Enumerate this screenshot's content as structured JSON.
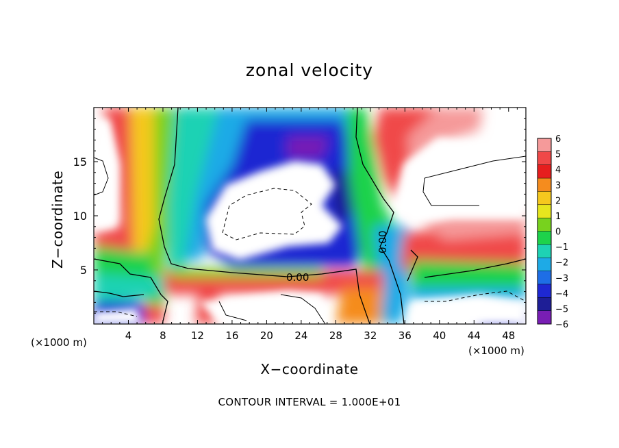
{
  "chart_data": {
    "type": "heatmap",
    "title": "zonal velocity",
    "xlabel": "X−coordinate",
    "ylabel": "Z−coordinate",
    "x_unit_left": "(×1000 m)",
    "x_unit_right": "(×1000 m)",
    "xlim": [
      0,
      50
    ],
    "ylim": [
      0,
      20
    ],
    "x_ticks": [
      4,
      8,
      12,
      16,
      20,
      24,
      28,
      32,
      36,
      40,
      44,
      48
    ],
    "y_ticks": [
      5,
      10,
      15
    ],
    "colorbar": {
      "levels": [
        6,
        5,
        4,
        3,
        2,
        1,
        0,
        -1,
        -2,
        -3,
        -4,
        -5,
        -6
      ],
      "colors": [
        "#f59a9a",
        "#f04848",
        "#e61e1e",
        "#f58c1e",
        "#f5c81e",
        "#e6e61e",
        "#78d21e",
        "#1ed24b",
        "#1ed2b4",
        "#1eaae6",
        "#1e6ee6",
        "#1e28d2",
        "#1e1e96",
        "#781eb4"
      ]
    },
    "contour_label_1": "0.00",
    "contour_label_2": "0.00",
    "contour_interval_text": "CONTOUR INTERVAL = 1.000E+01"
  }
}
